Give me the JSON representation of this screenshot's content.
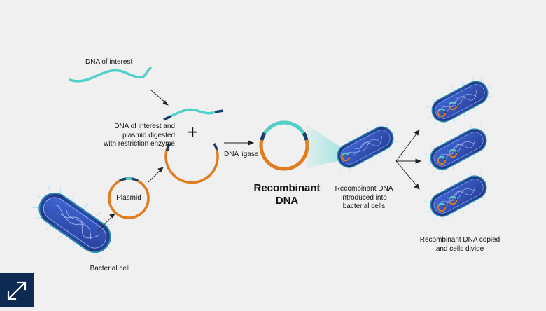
{
  "labels": {
    "dna_of_interest": "DNA of interest",
    "digested": "DNA of interest and\nplasmid digested\nwith restriction enzyme",
    "plus": "+",
    "dna_ligase": "DNA ligase",
    "plasmid": "Plasmid",
    "bacterial_cell": "Bacterial cell",
    "recombinant_dna": "Recombinant\nDNA",
    "introduced": "Recombinant DNA\nintroduced into\nbacterial cells",
    "copied": "Recombinant DNA copied\nand cells divide"
  },
  "colors": {
    "dna_teal": "#4fd0c8",
    "plasmid_orange": "#e07c1e",
    "navy_segment": "#1a3f6e",
    "cell_blue": "#3a5fc8",
    "background": "#f0f0f0",
    "expand_button": "#0c2a52"
  },
  "icons": {
    "expand": "expand-arrows-icon"
  }
}
